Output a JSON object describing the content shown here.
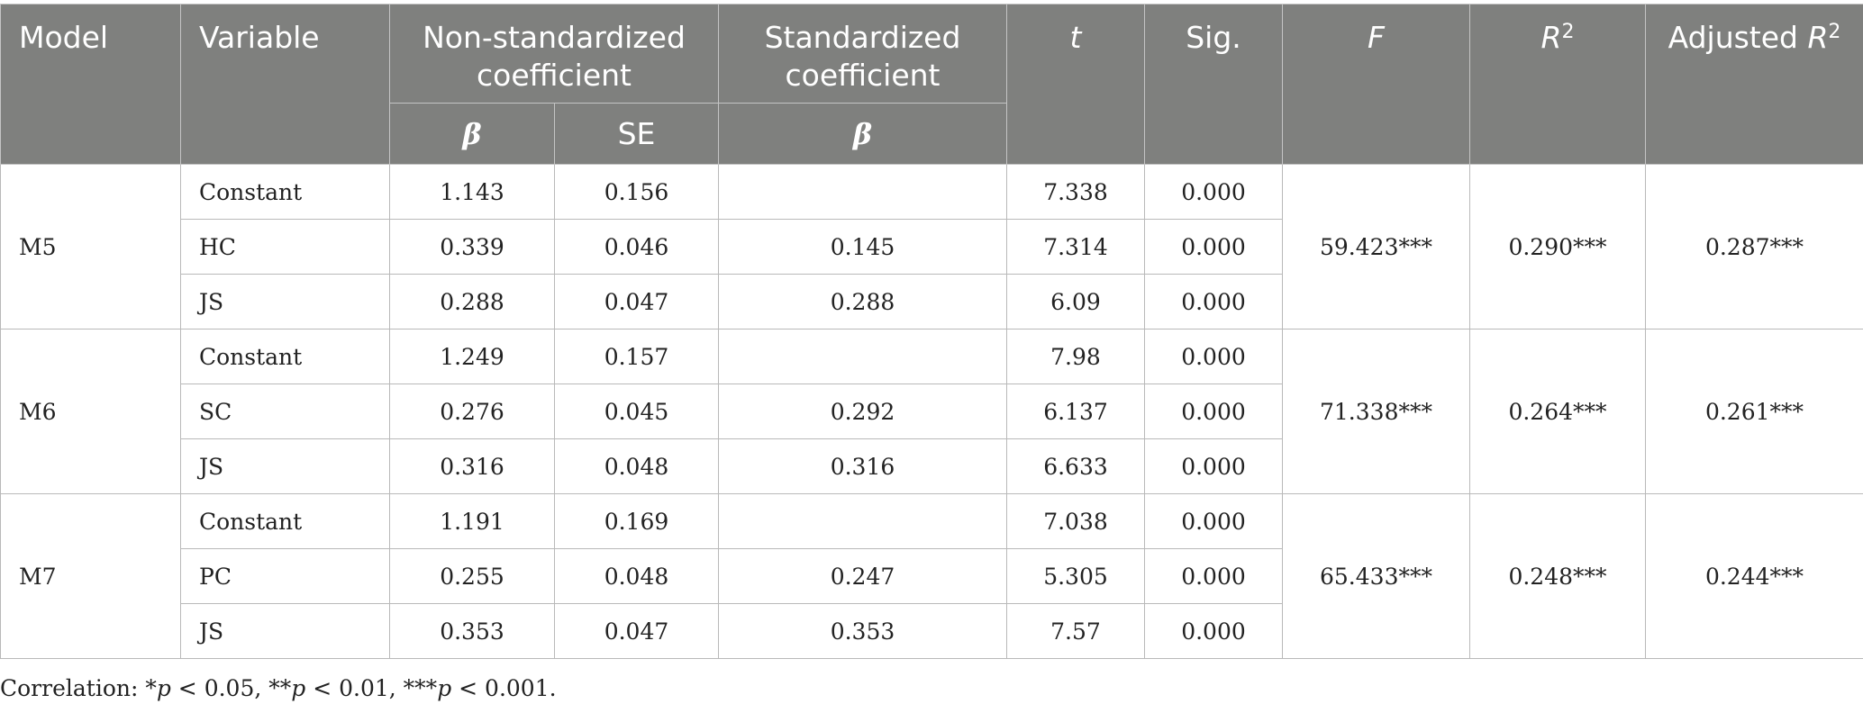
{
  "table": {
    "headers": {
      "model": "Model",
      "variable": "Variable",
      "nonstd_group": "Non-standardized coefficient",
      "std_group": "Standardized coefficient",
      "t": "t",
      "sig": "Sig.",
      "f": "F",
      "r2_base": "R",
      "r2_sup": "2",
      "adj_r2_prefix": "Adjusted ",
      "adj_r2_base": "R",
      "adj_r2_sup": "2",
      "nonstd_beta": "β",
      "nonstd_se": "SE",
      "std_beta": "β"
    },
    "groups": [
      {
        "model": "M5",
        "f": "59.423***",
        "r2": "0.290***",
        "adj_r2": "0.287***",
        "rows": [
          {
            "variable": "Constant",
            "beta": "1.143",
            "se": "0.156",
            "std_beta": "",
            "t": "7.338",
            "sig": "0.000"
          },
          {
            "variable": "HC",
            "beta": "0.339",
            "se": "0.046",
            "std_beta": "0.145",
            "t": "7.314",
            "sig": "0.000"
          },
          {
            "variable": "JS",
            "beta": "0.288",
            "se": "0.047",
            "std_beta": "0.288",
            "t": "6.09",
            "sig": "0.000"
          }
        ]
      },
      {
        "model": "M6",
        "f": "71.338***",
        "r2": "0.264***",
        "adj_r2": "0.261***",
        "rows": [
          {
            "variable": "Constant",
            "beta": "1.249",
            "se": "0.157",
            "std_beta": "",
            "t": "7.98",
            "sig": "0.000"
          },
          {
            "variable": "SC",
            "beta": "0.276",
            "se": "0.045",
            "std_beta": "0.292",
            "t": "6.137",
            "sig": "0.000"
          },
          {
            "variable": "JS",
            "beta": "0.316",
            "se": "0.048",
            "std_beta": "0.316",
            "t": "6.633",
            "sig": "0.000"
          }
        ]
      },
      {
        "model": "M7",
        "f": "65.433***",
        "r2": "0.248***",
        "adj_r2": "0.244***",
        "rows": [
          {
            "variable": "Constant",
            "beta": "1.191",
            "se": "0.169",
            "std_beta": "",
            "t": "7.038",
            "sig": "0.000"
          },
          {
            "variable": "PC",
            "beta": "0.255",
            "se": "0.048",
            "std_beta": "0.247",
            "t": "5.305",
            "sig": "0.000"
          },
          {
            "variable": "JS",
            "beta": "0.353",
            "se": "0.047",
            "std_beta": "0.353",
            "t": "7.57",
            "sig": "0.000"
          }
        ]
      }
    ]
  },
  "note": {
    "prefix": "Correlation: *",
    "p1": "p",
    "mid1": " < 0.05, **",
    "p2": "p",
    "mid2": " < 0.01, ***",
    "p3": "p",
    "suffix": " < 0.001."
  }
}
